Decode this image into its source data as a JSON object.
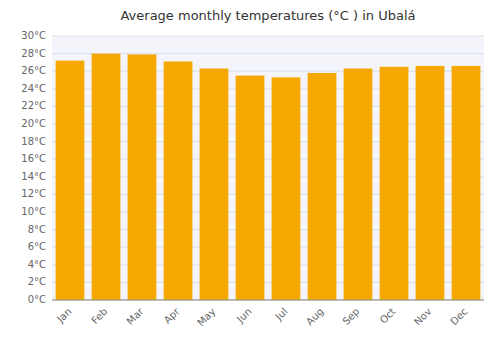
{
  "chart_data": {
    "type": "bar",
    "title": "Average monthly temperatures (°C ) in Ubalá",
    "categories": [
      "Jan",
      "Feb",
      "Mar",
      "Apr",
      "May",
      "Jun",
      "Jul",
      "Aug",
      "Sep",
      "Oct",
      "Nov",
      "Dec"
    ],
    "values": [
      27.2,
      28.0,
      27.9,
      27.1,
      26.3,
      25.5,
      25.3,
      25.8,
      26.3,
      26.5,
      26.6,
      26.6
    ],
    "color": "#F5A800",
    "ylim": [
      0,
      30
    ],
    "yticks": [
      {
        "value": 0,
        "label": "0°C"
      },
      {
        "value": 2,
        "label": "2°C"
      },
      {
        "value": 4,
        "label": "4°C"
      },
      {
        "value": 6,
        "label": "6°C"
      },
      {
        "value": 8,
        "label": "8°C"
      },
      {
        "value": 10,
        "label": "10°C"
      },
      {
        "value": 12,
        "label": "12°C"
      },
      {
        "value": 14,
        "label": "14°C"
      },
      {
        "value": 16,
        "label": "16°C"
      },
      {
        "value": 18,
        "label": "18°C"
      },
      {
        "value": 20,
        "label": "20°C"
      },
      {
        "value": 22,
        "label": "22°C"
      },
      {
        "value": 24,
        "label": "24°C"
      },
      {
        "value": 26,
        "label": "26°C"
      },
      {
        "value": 28,
        "label": "28°C"
      },
      {
        "value": 30,
        "label": "30°C"
      }
    ],
    "grid": true
  }
}
